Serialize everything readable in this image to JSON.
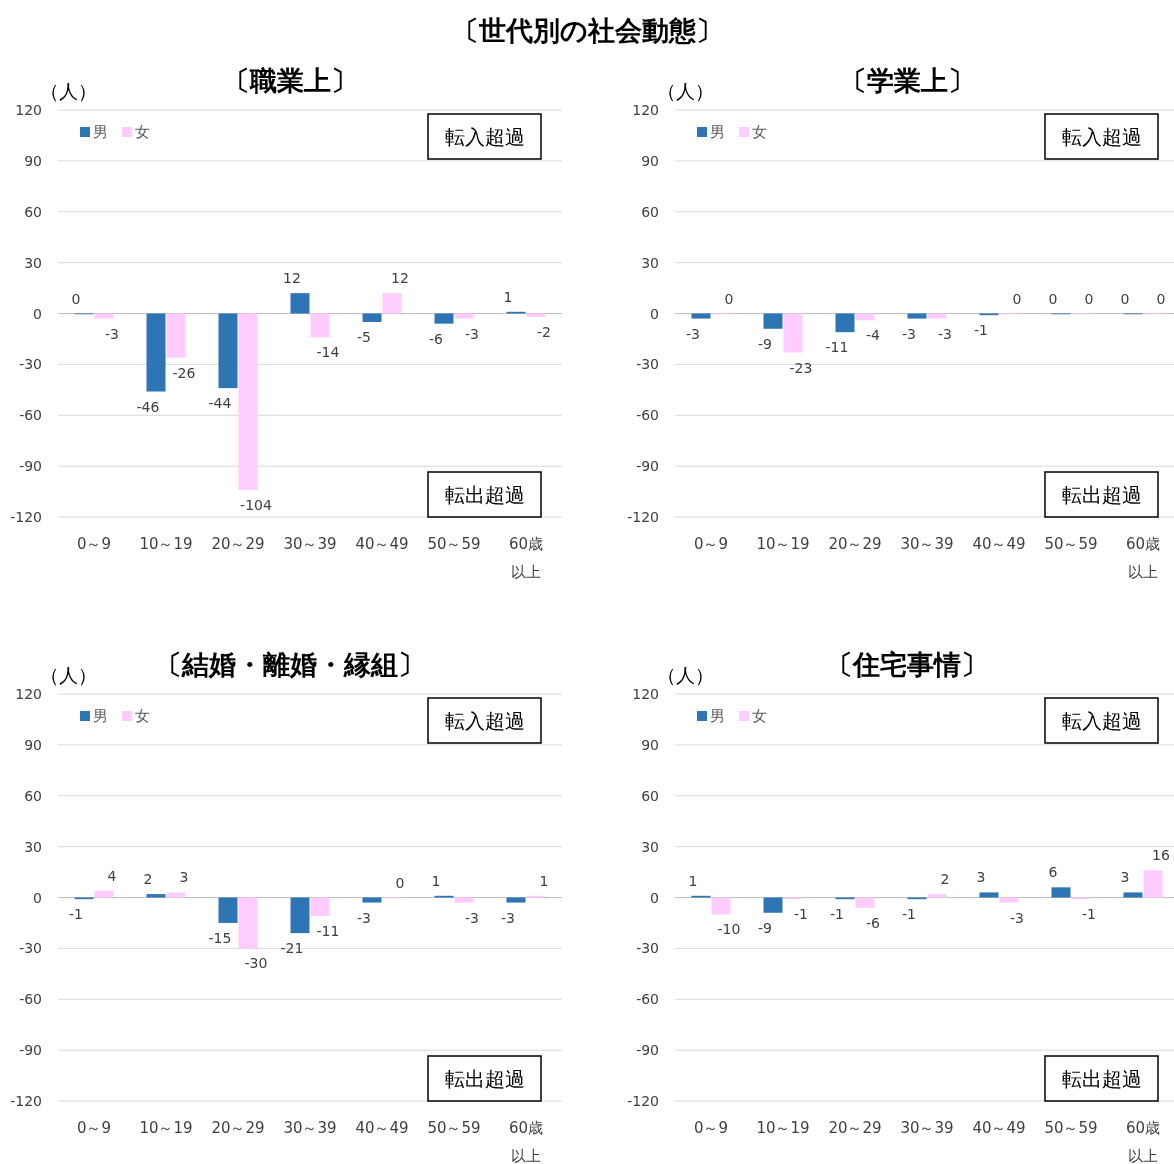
{
  "chart_data": [
    {
      "type": "bar",
      "title": "〔職業上〕",
      "ylabel": "（人）",
      "categories": [
        "0～9",
        "10～19",
        "20～29",
        "30～39",
        "40～49",
        "50～59",
        "60歳以上"
      ],
      "series": [
        {
          "name": "男",
          "color": "#2e75b6",
          "values": [
            0,
            -46,
            -44,
            12,
            -5,
            -6,
            1
          ]
        },
        {
          "name": "女",
          "color": "#ffccff",
          "values": [
            -3,
            -26,
            -104,
            -14,
            12,
            -3,
            -2
          ]
        }
      ],
      "ylim": [
        -120,
        120
      ],
      "yticks": [
        -120,
        -90,
        -60,
        -30,
        0,
        30,
        60,
        90,
        120
      ],
      "grid": "y",
      "legend": "top left",
      "data_labels": true,
      "annotations": [
        "〔世代別の社会動態〕",
        "転入超過",
        "転出超過"
      ]
    },
    {
      "type": "bar",
      "title": "〔学業上〕",
      "ylabel": "（人）",
      "categories": [
        "0～9",
        "10～19",
        "20～29",
        "30～39",
        "40～49",
        "50～59",
        "60歳以上"
      ],
      "series": [
        {
          "name": "男",
          "color": "#2e75b6",
          "values": [
            -3,
            -9,
            -11,
            -3,
            -1,
            0,
            0
          ]
        },
        {
          "name": "女",
          "color": "#ffccff",
          "values": [
            0,
            -23,
            -4,
            -3,
            0,
            0,
            0
          ]
        }
      ],
      "ylim": [
        -120,
        120
      ],
      "yticks": [
        -120,
        -90,
        -60,
        -30,
        0,
        30,
        60,
        90,
        120
      ],
      "grid": "y",
      "legend": "top left",
      "data_labels": true,
      "annotations": [
        "転入超過",
        "転出超過"
      ]
    },
    {
      "type": "bar",
      "title": "〔結婚・離婚・縁組〕",
      "ylabel": "（人）",
      "categories": [
        "0～9",
        "10～19",
        "20～29",
        "30～39",
        "40～49",
        "50～59",
        "60歳以上"
      ],
      "series": [
        {
          "name": "男",
          "color": "#2e75b6",
          "values": [
            -1,
            2,
            -15,
            -21,
            -3,
            1,
            -3
          ]
        },
        {
          "name": "女",
          "color": "#ffccff",
          "values": [
            4,
            3,
            -30,
            -11,
            0,
            -3,
            1
          ]
        }
      ],
      "ylim": [
        -120,
        120
      ],
      "yticks": [
        -120,
        -90,
        -60,
        -30,
        0,
        30,
        60,
        90,
        120
      ],
      "grid": "y",
      "legend": "top left",
      "data_labels": true,
      "annotations": [
        "転入超過",
        "転出超過"
      ]
    },
    {
      "type": "bar",
      "title": "〔住宅事情〕",
      "ylabel": "（人）",
      "categories": [
        "0～9",
        "10～19",
        "20～29",
        "30～39",
        "40～49",
        "50～59",
        "60歳以上"
      ],
      "series": [
        {
          "name": "男",
          "color": "#2e75b6",
          "values": [
            1,
            -9,
            -1,
            -1,
            3,
            6,
            3
          ]
        },
        {
          "name": "女",
          "color": "#ffccff",
          "values": [
            -10,
            -1,
            -6,
            2,
            -3,
            -1,
            16
          ]
        }
      ],
      "ylim": [
        -120,
        120
      ],
      "yticks": [
        -120,
        -90,
        -60,
        -30,
        0,
        30,
        60,
        90,
        120
      ],
      "grid": "y",
      "legend": "top left",
      "data_labels": true,
      "annotations": [
        "転入超過",
        "転出超過"
      ]
    }
  ]
}
